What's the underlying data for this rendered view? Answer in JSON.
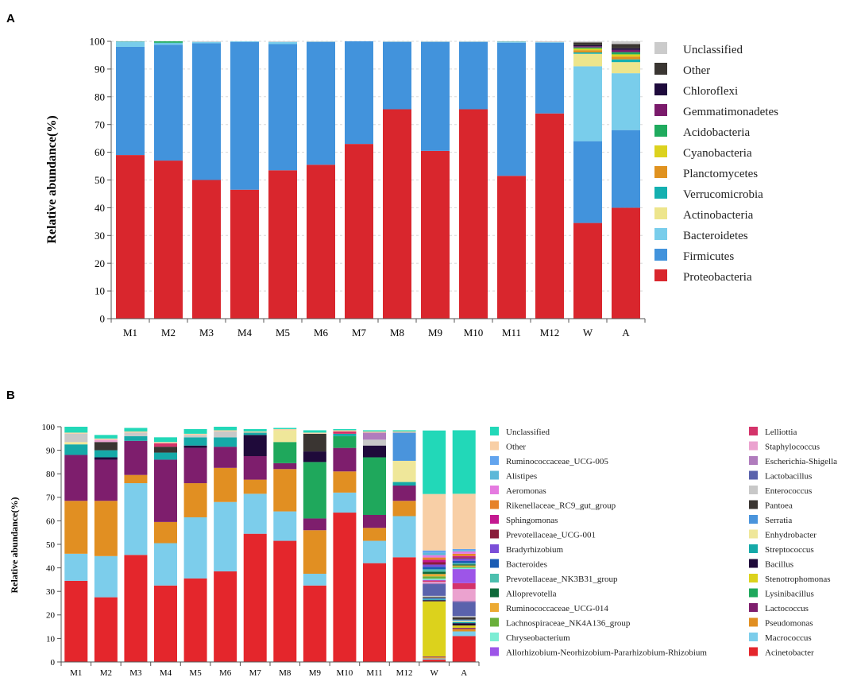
{
  "chart_data": [
    {
      "panel": "A",
      "type": "bar",
      "stacked": true,
      "ylabel": "Relative abundance(%)",
      "ylim": [
        0,
        100
      ],
      "yticks": [
        0,
        10,
        20,
        30,
        40,
        50,
        60,
        70,
        80,
        90,
        100
      ],
      "grid": true,
      "legend_position": "right",
      "categories": [
        "M1",
        "M2",
        "M3",
        "M4",
        "M5",
        "M6",
        "M7",
        "M8",
        "M9",
        "M10",
        "M11",
        "M12",
        "W",
        "A"
      ],
      "series": [
        {
          "name": "Proteobacteria",
          "color": "#d9262d",
          "values": [
            59,
            57,
            50,
            46.5,
            53.5,
            55.5,
            63,
            75.5,
            60.5,
            75.5,
            51.5,
            74,
            34.5,
            40
          ]
        },
        {
          "name": "Firmicutes",
          "color": "#4293dc",
          "values": [
            39,
            41.8,
            49.3,
            53.3,
            45.5,
            44.3,
            37,
            24.3,
            39.3,
            24.3,
            48,
            25.5,
            29.5,
            28
          ]
        },
        {
          "name": "Bacteroidetes",
          "color": "#79cdeb",
          "values": [
            1.7,
            0.6,
            0.5,
            0.2,
            0.8,
            0.1,
            0,
            0.1,
            0.1,
            0.1,
            0.3,
            0.2,
            27,
            20.5
          ]
        },
        {
          "name": "Actinobacteria",
          "color": "#ede58c",
          "values": [
            0,
            0,
            0,
            0,
            0,
            0,
            0,
            0,
            0,
            0,
            0,
            0,
            4.5,
            4
          ]
        },
        {
          "name": "Verrucomicrobia",
          "color": "#14b0b0",
          "values": [
            0.2,
            0.1,
            0,
            0,
            0,
            0,
            0,
            0,
            0,
            0,
            0.1,
            0,
            0.5,
            1
          ]
        },
        {
          "name": "Planctomycetes",
          "color": "#e0921f",
          "values": [
            0,
            0,
            0,
            0,
            0,
            0,
            0,
            0,
            0,
            0,
            0,
            0,
            0.8,
            1
          ]
        },
        {
          "name": "Cyanobacteria",
          "color": "#dcd21e",
          "values": [
            0,
            0,
            0,
            0,
            0,
            0,
            0,
            0,
            0,
            0,
            0,
            0,
            0.6,
            0.8
          ]
        },
        {
          "name": "Acidobacteria",
          "color": "#1fab5e",
          "values": [
            0,
            0.5,
            0,
            0,
            0,
            0,
            0,
            0,
            0,
            0,
            0,
            0,
            0.4,
            0.8
          ]
        },
        {
          "name": "Gemmatimonadetes",
          "color": "#7a1a6b",
          "values": [
            0,
            0,
            0,
            0,
            0,
            0,
            0,
            0,
            0,
            0,
            0,
            0,
            0.4,
            0.8
          ]
        },
        {
          "name": "Chloroflexi",
          "color": "#1e0a3c",
          "values": [
            0,
            0,
            0,
            0,
            0,
            0,
            0,
            0,
            0,
            0,
            0,
            0,
            0.4,
            0.6
          ]
        },
        {
          "name": "Other",
          "color": "#3a3632",
          "values": [
            0,
            0,
            0,
            0,
            0,
            0,
            0,
            0,
            0,
            0,
            0,
            0,
            1,
            1.5
          ]
        },
        {
          "name": "Unclassified",
          "color": "#cbcbcb",
          "values": [
            0.1,
            0,
            0.2,
            0,
            0.2,
            0.1,
            0,
            0.1,
            0.1,
            0.1,
            0.1,
            0.3,
            0.4,
            1
          ]
        }
      ]
    },
    {
      "panel": "B",
      "type": "bar",
      "stacked": true,
      "ylabel": "Relative abundance(%)",
      "ylim": [
        0,
        100
      ],
      "yticks": [
        0,
        10,
        20,
        30,
        40,
        50,
        60,
        70,
        80,
        90,
        100
      ],
      "grid": false,
      "legend_position": "right",
      "categories": [
        "M1",
        "M2",
        "M3",
        "M4",
        "M5",
        "M6",
        "M7",
        "M8",
        "M9",
        "M10",
        "M11",
        "M12",
        "W",
        "A"
      ],
      "series": [
        {
          "name": "Acinetobacter",
          "color": "#e4262c",
          "values": [
            34.5,
            27.5,
            45.5,
            32.5,
            35.5,
            38.5,
            54.5,
            51.5,
            32.5,
            63.5,
            42,
            44.5,
            1,
            11
          ]
        },
        {
          "name": "Macrococcus",
          "color": "#7ccdeb",
          "values": [
            11.5,
            17.5,
            30.5,
            18,
            26,
            29.5,
            17,
            12.5,
            5,
            8.5,
            9.5,
            17.5,
            0.5,
            2
          ]
        },
        {
          "name": "Pseudomonas",
          "color": "#e18f22",
          "values": [
            22.5,
            23.5,
            3.5,
            9,
            14.5,
            14.5,
            6,
            18,
            18.5,
            9,
            5.5,
            6.5,
            0.5,
            1
          ]
        },
        {
          "name": "Lactococcus",
          "color": "#7e1e6d",
          "values": [
            19.5,
            17.5,
            14.5,
            26.5,
            15,
            9,
            10,
            2.5,
            5,
            10,
            5.5,
            6.5,
            0.3,
            0.5
          ]
        },
        {
          "name": "Lysinibacillus",
          "color": "#1fa85c",
          "values": [
            0,
            0,
            0,
            0,
            0,
            0,
            0,
            9,
            24,
            5,
            24.5,
            0,
            0,
            0
          ]
        },
        {
          "name": "Stenotrophomonas",
          "color": "#dcd21c",
          "values": [
            0,
            0,
            0,
            0,
            0,
            0,
            0,
            0,
            0,
            0,
            0,
            0,
            23.5,
            1
          ]
        },
        {
          "name": "Bacillus",
          "color": "#1f0a3a",
          "values": [
            0,
            1,
            0,
            0,
            1,
            0,
            9,
            0,
            4.5,
            0,
            5,
            0,
            0.5,
            1
          ]
        },
        {
          "name": "Streptococcus",
          "color": "#15a9a8",
          "values": [
            4.5,
            3,
            2,
            3,
            3.5,
            4,
            1,
            0,
            0,
            1,
            0,
            1.5,
            0.3,
            0.5
          ]
        },
        {
          "name": "Enhydrobacter",
          "color": "#efe79a",
          "values": [
            1,
            0,
            0,
            0,
            0,
            0,
            0,
            5,
            0,
            0,
            0,
            9,
            0,
            0.5
          ]
        },
        {
          "name": "Serratia",
          "color": "#4a94dc",
          "values": [
            0,
            0,
            0,
            0,
            0,
            0,
            0,
            0,
            0,
            0,
            0,
            12,
            0.5,
            0.5
          ]
        },
        {
          "name": "Pantoea",
          "color": "#3a3532",
          "values": [
            0,
            3.5,
            0,
            2.5,
            0,
            0,
            0,
            0,
            7.5,
            0,
            0,
            0,
            0.5,
            1
          ]
        },
        {
          "name": "Enterococcus",
          "color": "#c8c8c8",
          "values": [
            3.5,
            0,
            1.5,
            0,
            1,
            2.5,
            0,
            0,
            0,
            0,
            2.5,
            0,
            0.5,
            0.5
          ]
        },
        {
          "name": "Lactobacillus",
          "color": "#5a62ac",
          "values": [
            0,
            0,
            0,
            0,
            0,
            0,
            0,
            0,
            0,
            0,
            0,
            0,
            5,
            6
          ]
        },
        {
          "name": "Escherichia-Shigella",
          "color": "#b07cbd",
          "values": [
            0,
            0,
            0,
            0,
            0,
            0,
            0,
            0,
            0,
            0,
            3,
            0,
            0.5,
            0.5
          ]
        },
        {
          "name": "Staphylococcus",
          "color": "#eba2cf",
          "values": [
            0,
            1,
            0,
            0,
            0,
            0,
            0,
            0,
            0,
            0,
            0,
            0,
            0.5,
            5
          ]
        },
        {
          "name": "Lelliottia",
          "color": "#d4336a",
          "values": [
            0,
            0,
            0,
            1.5,
            0,
            0,
            0,
            0,
            0,
            1,
            0,
            0,
            0.5,
            2.5
          ]
        },
        {
          "name": "Allorhizobium-Neorhizobium-Pararhizobium-Rhizobium",
          "color": "#9d55e8",
          "values": [
            0,
            0,
            0,
            0,
            0,
            0,
            0,
            0,
            0,
            0,
            0,
            0,
            0.3,
            6
          ]
        },
        {
          "name": "Chryseobacterium",
          "color": "#7cedd4",
          "values": [
            0,
            0,
            0,
            0,
            0,
            0,
            0,
            0,
            0,
            0,
            0,
            0,
            0.5,
            0.5
          ]
        },
        {
          "name": "Lachnospiraceae_NK4A136_group",
          "color": "#6aaf3a",
          "values": [
            0,
            0,
            0,
            0,
            0,
            0,
            0,
            0,
            0,
            0,
            0,
            0,
            1,
            0.5
          ]
        },
        {
          "name": "Ruminococcaceae_UCG-014",
          "color": "#ecaa32",
          "values": [
            0,
            0,
            0,
            0,
            0,
            0,
            0,
            0,
            0,
            0,
            0,
            0,
            1,
            0.5
          ]
        },
        {
          "name": "Alloprevotella",
          "color": "#0f6a3a",
          "values": [
            0,
            0,
            0,
            0,
            0,
            0,
            0,
            0,
            0,
            0,
            0,
            0,
            1,
            0.5
          ]
        },
        {
          "name": "Prevotellaceae_NK3B31_group",
          "color": "#4cbfae",
          "values": [
            0,
            0,
            0,
            0,
            0,
            0,
            0,
            0,
            0,
            0,
            0,
            0,
            1,
            0.5
          ]
        },
        {
          "name": "Bacteroides",
          "color": "#1a5cb4",
          "values": [
            0,
            0,
            0,
            0,
            0,
            0,
            0,
            0,
            0,
            0,
            0,
            0,
            1,
            1
          ]
        },
        {
          "name": "Bradyrhizobium",
          "color": "#7b4fd8",
          "values": [
            0,
            0,
            0,
            0,
            0,
            0,
            0,
            0,
            0,
            0,
            0,
            0,
            1,
            1
          ]
        },
        {
          "name": "Prevotellaceae_UCG-001",
          "color": "#8a1c3a",
          "values": [
            0,
            0,
            0,
            0,
            0,
            0,
            0,
            0,
            0,
            0,
            0,
            0,
            1,
            0.5
          ]
        },
        {
          "name": "Sphingomonas",
          "color": "#c41890",
          "values": [
            0,
            0,
            0,
            0,
            0,
            0,
            0,
            0,
            0,
            0,
            0,
            0,
            1,
            0.5
          ]
        },
        {
          "name": "Rikenellaceae_RC9_gut_group",
          "color": "#e6822a",
          "values": [
            0,
            0,
            0,
            0,
            0,
            0,
            0,
            0,
            0,
            0,
            0,
            0,
            1,
            1
          ]
        },
        {
          "name": "Aeromonas",
          "color": "#e57ae0",
          "values": [
            0,
            0,
            0,
            0,
            0,
            0,
            0,
            0,
            0,
            0,
            0,
            0,
            1,
            1
          ]
        },
        {
          "name": "Alistipes",
          "color": "#5cb8d8",
          "values": [
            0,
            0,
            0,
            0,
            0,
            0,
            0,
            0,
            0,
            0,
            0,
            0,
            1,
            0.5
          ]
        },
        {
          "name": "Ruminococcaceae_UCG-005",
          "color": "#62a4ee",
          "values": [
            0,
            0,
            0,
            0,
            0,
            0,
            0,
            0,
            0,
            0,
            0,
            0,
            1,
            0.5
          ]
        },
        {
          "name": "Other",
          "color": "#f8cfa6",
          "values": [
            0.5,
            0.5,
            0.5,
            0.5,
            0.5,
            0.5,
            0.5,
            0.5,
            0.5,
            0.5,
            0.5,
            0.5,
            24,
            23.5
          ]
        },
        {
          "name": "Unclassified",
          "color": "#22d8b8",
          "values": [
            2.5,
            1.5,
            1.5,
            2,
            2,
            1.5,
            1,
            0.5,
            1,
            0.5,
            0.5,
            0.5,
            27,
            27
          ]
        }
      ]
    }
  ],
  "panel_letters": [
    "A",
    "B"
  ]
}
